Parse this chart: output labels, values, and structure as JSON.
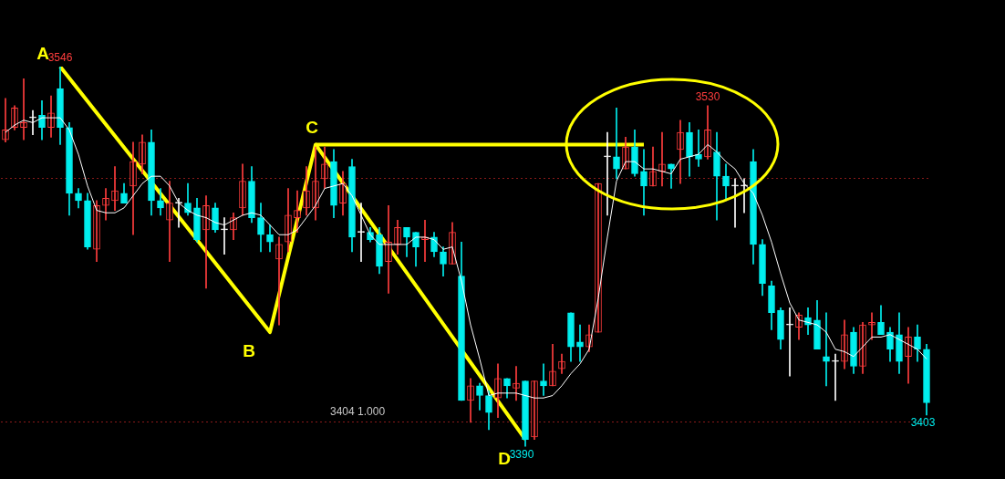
{
  "chart_data": {
    "type": "candlestick",
    "categories": [
      null,
      null,
      null,
      null,
      null,
      null,
      null,
      null,
      null,
      null,
      null,
      null,
      null,
      null,
      null,
      null,
      null,
      null,
      null,
      null,
      null,
      null,
      null,
      null,
      null,
      null,
      null,
      null,
      null,
      null,
      null,
      null,
      null,
      null,
      null,
      null,
      null,
      null,
      null,
      null,
      null,
      null,
      null,
      null,
      null,
      null,
      null,
      null,
      null,
      null,
      null,
      null,
      null,
      null,
      null,
      null,
      null,
      null,
      null,
      null,
      null,
      null,
      null,
      null,
      null,
      null,
      null,
      null,
      null,
      null,
      null,
      null,
      null,
      null,
      null,
      null,
      null,
      null,
      null,
      null,
      null,
      null,
      null,
      null,
      null,
      null,
      null,
      null,
      null,
      null,
      null,
      null,
      null,
      null,
      null,
      null,
      null,
      null,
      null,
      null,
      null,
      null
    ],
    "ohlc": [
      [
        3516,
        3533,
        3515,
        3520
      ],
      [
        3521,
        3530,
        3520,
        3529
      ],
      [
        3521,
        3541,
        3516,
        3523
      ],
      [
        3525,
        3528,
        3518,
        3525
      ],
      [
        3526,
        3532,
        3516,
        3521
      ],
      [
        3521,
        3534,
        3517,
        3527
      ],
      [
        3537,
        3546,
        3514,
        3521
      ],
      [
        3521,
        3523,
        3485,
        3494
      ],
      [
        3494,
        3496,
        3488,
        3491
      ],
      [
        3491,
        3494,
        3471,
        3472
      ],
      [
        3471,
        3491,
        3466,
        3489
      ],
      [
        3489,
        3496,
        3483,
        3492
      ],
      [
        3491,
        3505,
        3487,
        3495
      ],
      [
        3494,
        3498,
        3490,
        3490
      ],
      [
        3497,
        3515,
        3477,
        3507
      ],
      [
        3506,
        3518,
        3502,
        3515
      ],
      [
        3515,
        3520,
        3485,
        3491
      ],
      [
        3491,
        3496,
        3485,
        3488
      ],
      [
        3483,
        3499,
        3466,
        3490
      ],
      [
        3490,
        3492,
        3480,
        3490
      ],
      [
        3490,
        3498,
        3485,
        3486
      ],
      [
        3488,
        3492,
        3474,
        3475
      ],
      [
        3479,
        3493,
        3455,
        3489
      ],
      [
        3488,
        3490,
        3478,
        3479
      ],
      [
        3479,
        3484,
        3469,
        3479
      ],
      [
        3479,
        3486,
        3475,
        3484
      ],
      [
        3488,
        3506,
        3485,
        3499
      ],
      [
        3499,
        3505,
        3482,
        3484
      ],
      [
        3484,
        3490,
        3470,
        3477
      ],
      [
        3477,
        3481,
        3470,
        3474
      ],
      [
        3467,
        3476,
        3440,
        3473
      ],
      [
        3474,
        3496,
        3470,
        3485
      ],
      [
        3484,
        3495,
        3478,
        3487
      ],
      [
        3488,
        3505,
        3485,
        3495
      ],
      [
        3488,
        3513,
        3483,
        3499
      ],
      [
        3500,
        3513,
        3496,
        3506
      ],
      [
        3507,
        3512,
        3484,
        3489
      ],
      [
        3490,
        3503,
        3485,
        3498
      ],
      [
        3505,
        3508,
        3470,
        3476
      ],
      [
        3478,
        3490,
        3466,
        3478
      ],
      [
        3478,
        3480,
        3474,
        3475
      ],
      [
        3477,
        3480,
        3461,
        3464
      ],
      [
        3466,
        3489,
        3453,
        3474
      ],
      [
        3473,
        3483,
        3469,
        3480
      ],
      [
        3480,
        3480,
        3468,
        3476
      ],
      [
        3478,
        3478,
        3464,
        3472
      ],
      [
        3475,
        3483,
        3466,
        3476
      ],
      [
        3476,
        3478,
        3468,
        3470
      ],
      [
        3470,
        3472,
        3460,
        3465
      ],
      [
        3465,
        3482,
        3465,
        3478
      ],
      [
        3460,
        3474,
        3409,
        3409
      ],
      [
        3409,
        3418,
        3400,
        3415
      ],
      [
        3415,
        3416,
        3405,
        3411
      ],
      [
        3411,
        3413,
        3397,
        3404
      ],
      [
        3410,
        3424,
        3402,
        3418
      ],
      [
        3418,
        3418,
        3410,
        3415
      ],
      [
        3414,
        3423,
        3409,
        3416
      ],
      [
        3417,
        3417,
        3390,
        3393
      ],
      [
        3394,
        3417,
        3393,
        3417
      ],
      [
        3417,
        3424,
        3411,
        3415
      ],
      [
        3415,
        3432,
        3415,
        3421
      ],
      [
        3422,
        3428,
        3420,
        3425
      ],
      [
        3445,
        3445,
        3425,
        3431
      ],
      [
        3433,
        3440,
        3425,
        3431
      ],
      [
        3431,
        3440,
        3429,
        3436
      ],
      [
        3437,
        3498,
        3437,
        3498
      ],
      [
        3509,
        3519,
        3485,
        3509
      ],
      [
        3509,
        3529,
        3500,
        3504
      ],
      [
        3504,
        3517,
        3504,
        3513
      ],
      [
        3513,
        3520,
        3501,
        3502
      ],
      [
        3503,
        3512,
        3485,
        3497
      ],
      [
        3497,
        3513,
        3497,
        3503
      ],
      [
        3503,
        3519,
        3497,
        3506
      ],
      [
        3506,
        3506,
        3496,
        3504
      ],
      [
        3512,
        3524,
        3498,
        3519
      ],
      [
        3519,
        3523,
        3501,
        3509
      ],
      [
        3510,
        3520,
        3505,
        3508
      ],
      [
        3509,
        3530,
        3508,
        3520
      ],
      [
        3511,
        3519,
        3483,
        3501
      ],
      [
        3501,
        3506,
        3491,
        3497
      ],
      [
        3497,
        3500,
        3480,
        3497
      ],
      [
        3497,
        3500,
        3486,
        3497
      ],
      [
        3507,
        3512,
        3465,
        3473
      ],
      [
        3473,
        3475,
        3452,
        3457
      ],
      [
        3456,
        3458,
        3438,
        3445
      ],
      [
        3446,
        3447,
        3430,
        3434
      ],
      [
        3440,
        3447,
        3419,
        3440
      ],
      [
        3439,
        3445,
        3434,
        3444
      ],
      [
        3443,
        3447,
        3436,
        3440
      ],
      [
        3442,
        3450,
        3430,
        3430
      ],
      [
        3427,
        3445,
        3415,
        3425
      ],
      [
        3425,
        3428,
        3409,
        3425
      ],
      [
        3425,
        3442,
        3422,
        3436
      ],
      [
        3437,
        3439,
        3420,
        3423
      ],
      [
        3423,
        3441,
        3420,
        3440
      ],
      [
        3440,
        3445,
        3434,
        3441
      ],
      [
        3441,
        3448,
        3436,
        3436
      ],
      [
        3437,
        3439,
        3425,
        3430
      ],
      [
        3436,
        3445,
        3420,
        3425
      ],
      [
        3427,
        3439,
        3416,
        3435
      ],
      [
        3435,
        3440,
        3425,
        3430
      ],
      [
        3430,
        3432,
        3403,
        3408
      ]
    ],
    "colors": [
      "#ff3d3d",
      "#ff3d3d",
      "#ff3d3d",
      "#ffffff",
      "#00eeee",
      "#ff3d3d",
      "#00eeee",
      "#00eeee",
      "#00eeee",
      "#00eeee",
      "#ff3d3d",
      "#ff3d3d",
      "#ff3d3d",
      "#00eeee",
      "#ff3d3d",
      "#ff3d3d",
      "#00eeee",
      "#00eeee",
      "#ff3d3d",
      "#ffffff",
      "#00eeee",
      "#00eeee",
      "#ff3d3d",
      "#00eeee",
      "#ffffff",
      "#ff3d3d",
      "#ff3d3d",
      "#00eeee",
      "#00eeee",
      "#00eeee",
      "#ff3d3d",
      "#ff3d3d",
      "#ff3d3d",
      "#ff3d3d",
      "#ff3d3d",
      "#ff3d3d",
      "#00eeee",
      "#ff3d3d",
      "#00eeee",
      "#ffffff",
      "#00eeee",
      "#00eeee",
      "#ff3d3d",
      "#ff3d3d",
      "#00eeee",
      "#00eeee",
      "#ff3d3d",
      "#00eeee",
      "#00eeee",
      "#ff3d3d",
      "#00eeee",
      "#ff3d3d",
      "#00eeee",
      "#00eeee",
      "#ff3d3d",
      "#00eeee",
      "#ff3d3d",
      "#00eeee",
      "#ff3d3d",
      "#00eeee",
      "#ff3d3d",
      "#ff3d3d",
      "#00eeee",
      "#00eeee",
      "#ff3d3d",
      "#ff3d3d",
      "#ffffff",
      "#00eeee",
      "#ff3d3d",
      "#00eeee",
      "#00eeee",
      "#ff3d3d",
      "#ff3d3d",
      "#00eeee",
      "#ff3d3d",
      "#00eeee",
      "#00eeee",
      "#ff3d3d",
      "#00eeee",
      "#00eeee",
      "#ffffff",
      "#ffffff",
      "#00eeee",
      "#00eeee",
      "#00eeee",
      "#00eeee",
      "#ffffff",
      "#ff3d3d",
      "#00eeee",
      "#00eeee",
      "#00eeee",
      "#ffffff",
      "#ff3d3d",
      "#00eeee",
      "#ff3d3d",
      "#ff3d3d",
      "#00eeee",
      "#00eeee",
      "#00eeee",
      "#ff3d3d",
      "#00eeee",
      "#00eeee"
    ],
    "series": [
      {
        "type": "line",
        "color": "#ffffff",
        "values": [
          3519,
          3522,
          3524,
          3523,
          3525,
          3525,
          3525,
          3520,
          3510,
          3497,
          3487,
          3486,
          3486,
          3488,
          3493,
          3498,
          3501,
          3501,
          3497,
          3490,
          3487,
          3485,
          3484,
          3482,
          3481,
          3483,
          3485,
          3486,
          3485,
          3481,
          3477,
          3477,
          3479,
          3484,
          3489,
          3496,
          3497,
          3498,
          3493,
          3485,
          3477,
          3473,
          3473,
          3473,
          3473,
          3476,
          3476,
          3475,
          3471,
          3472,
          3458,
          3440,
          3426,
          3411,
          3412,
          3412,
          3412,
          3411,
          3410,
          3410,
          3411,
          3415,
          3420,
          3424,
          3430,
          3451,
          3476,
          3499,
          3507,
          3507,
          3504,
          3504,
          3503,
          3502,
          3508,
          3509,
          3510,
          3514,
          3511,
          3507,
          3504,
          3498,
          3494,
          3485,
          3474,
          3461,
          3449,
          3442,
          3441,
          3440,
          3437,
          3430,
          3429,
          3427,
          3431,
          3435,
          3435,
          3436,
          3434,
          3432,
          3430,
          3426
        ]
      },
      {
        "type": "line",
        "color": "#ffff00",
        "values": [
          null,
          null,
          null,
          null,
          null,
          null,
          3546,
          null,
          null,
          null,
          null,
          null,
          null,
          null,
          null,
          null,
          null,
          null,
          null,
          null,
          null,
          null,
          null,
          null,
          null,
          null,
          null,
          null,
          null,
          3437,
          null,
          null,
          null,
          null,
          3514,
          null,
          null,
          null,
          null,
          null,
          null,
          null,
          null,
          null,
          null,
          null,
          null,
          null,
          null,
          null,
          null,
          null,
          null,
          null,
          null,
          null,
          null,
          3393,
          null,
          null,
          null,
          null,
          null,
          null,
          null,
          null,
          null,
          null,
          null,
          null,
          null,
          null,
          null,
          null,
          null,
          null,
          null,
          null,
          null,
          null,
          null,
          null,
          null,
          null,
          null,
          null,
          null,
          null,
          null,
          null,
          null,
          null,
          null,
          null,
          null,
          null,
          null,
          null,
          null,
          null,
          null,
          null
        ]
      },
      {
        "type": "line",
        "color": "#ffff00",
        "values": [
          null,
          null,
          null,
          null,
          null,
          null,
          null,
          null,
          null,
          null,
          null,
          null,
          null,
          null,
          null,
          null,
          null,
          null,
          null,
          null,
          null,
          null,
          null,
          null,
          null,
          null,
          null,
          null,
          null,
          null,
          null,
          null,
          null,
          null,
          3514,
          null,
          null,
          null,
          null,
          null,
          null,
          null,
          null,
          null,
          null,
          null,
          null,
          null,
          null,
          null,
          null,
          null,
          null,
          null,
          null,
          null,
          null,
          null,
          null,
          null,
          null,
          null,
          null,
          null,
          null,
          null,
          null,
          null,
          null,
          null,
          3514,
          null,
          null,
          null,
          null,
          null,
          null,
          null,
          null,
          null,
          null,
          null,
          null,
          null,
          null,
          null,
          null,
          null,
          null,
          null,
          null,
          null,
          null,
          null,
          null,
          null,
          null,
          null,
          null,
          null,
          null,
          null
        ]
      }
    ],
    "annotations": [
      "A",
      "B",
      "C",
      "D",
      {
        "text": "3546",
        "y": 3546
      },
      {
        "text": "3530",
        "y": 3530
      },
      {
        "text": "3390",
        "y": 3390
      },
      {
        "text": "3403",
        "y": 3403
      },
      "3404 1.000"
    ],
    "yticks": [
      {
        "value": 3400,
        "label": null
      },
      {
        "value": 3500,
        "label": null
      }
    ],
    "grid": "y"
  }
}
